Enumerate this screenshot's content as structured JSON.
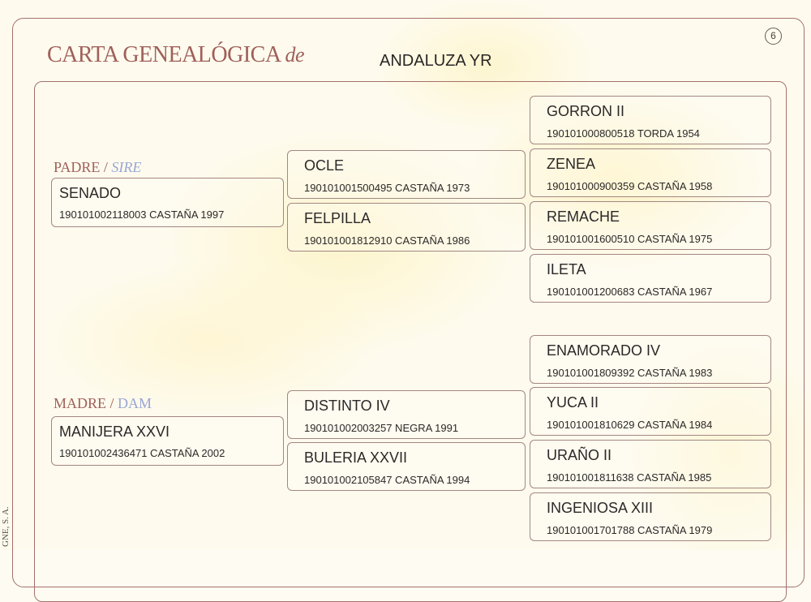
{
  "header": {
    "title": "CARTA GENEALÓGICA",
    "title_suffix": "de",
    "horse_name": "ANDALUZA YR",
    "page_number": "6"
  },
  "sidebar_text": "GNE, S. A.",
  "sire_label": {
    "es": "PADRE",
    "sep": "/",
    "en": "SIRE"
  },
  "dam_label": {
    "es": "MADRE",
    "sep": "/",
    "en": "DAM"
  },
  "sire": {
    "name": "SENADO",
    "info": "190101002118003 CASTAÑA 1997"
  },
  "dam": {
    "name": "MANIJERA XXVI",
    "info": "190101002436471 CASTAÑA 2002"
  },
  "grandparents": [
    {
      "name": "OCLE",
      "info": "190101001500495 CASTAÑA 1973"
    },
    {
      "name": "FELPILLA",
      "info": "190101001812910 CASTAÑA 1986"
    },
    {
      "name": "DISTINTO IV",
      "info": "190101002003257 NEGRA 1991"
    },
    {
      "name": "BULERIA XXVII",
      "info": "190101002105847 CASTAÑA 1994"
    }
  ],
  "great_grandparents": [
    {
      "name": "GORRON II",
      "info": "190101000800518 TORDA 1954"
    },
    {
      "name": "ZENEA",
      "info": "190101000900359 CASTAÑA 1958"
    },
    {
      "name": "REMACHE",
      "info": "190101001600510 CASTAÑA 1975"
    },
    {
      "name": "ILETA",
      "info": "190101001200683 CASTAÑA 1967"
    },
    {
      "name": "ENAMORADO IV",
      "info": "190101001809392 CASTAÑA 1983"
    },
    {
      "name": "YUCA II",
      "info": "190101001810629 CASTAÑA 1984"
    },
    {
      "name": "URAÑO II",
      "info": "190101001811638 CASTAÑA 1985"
    },
    {
      "name": "INGENIOSA XIII",
      "info": "190101001701788 CASTAÑA 1979"
    }
  ]
}
